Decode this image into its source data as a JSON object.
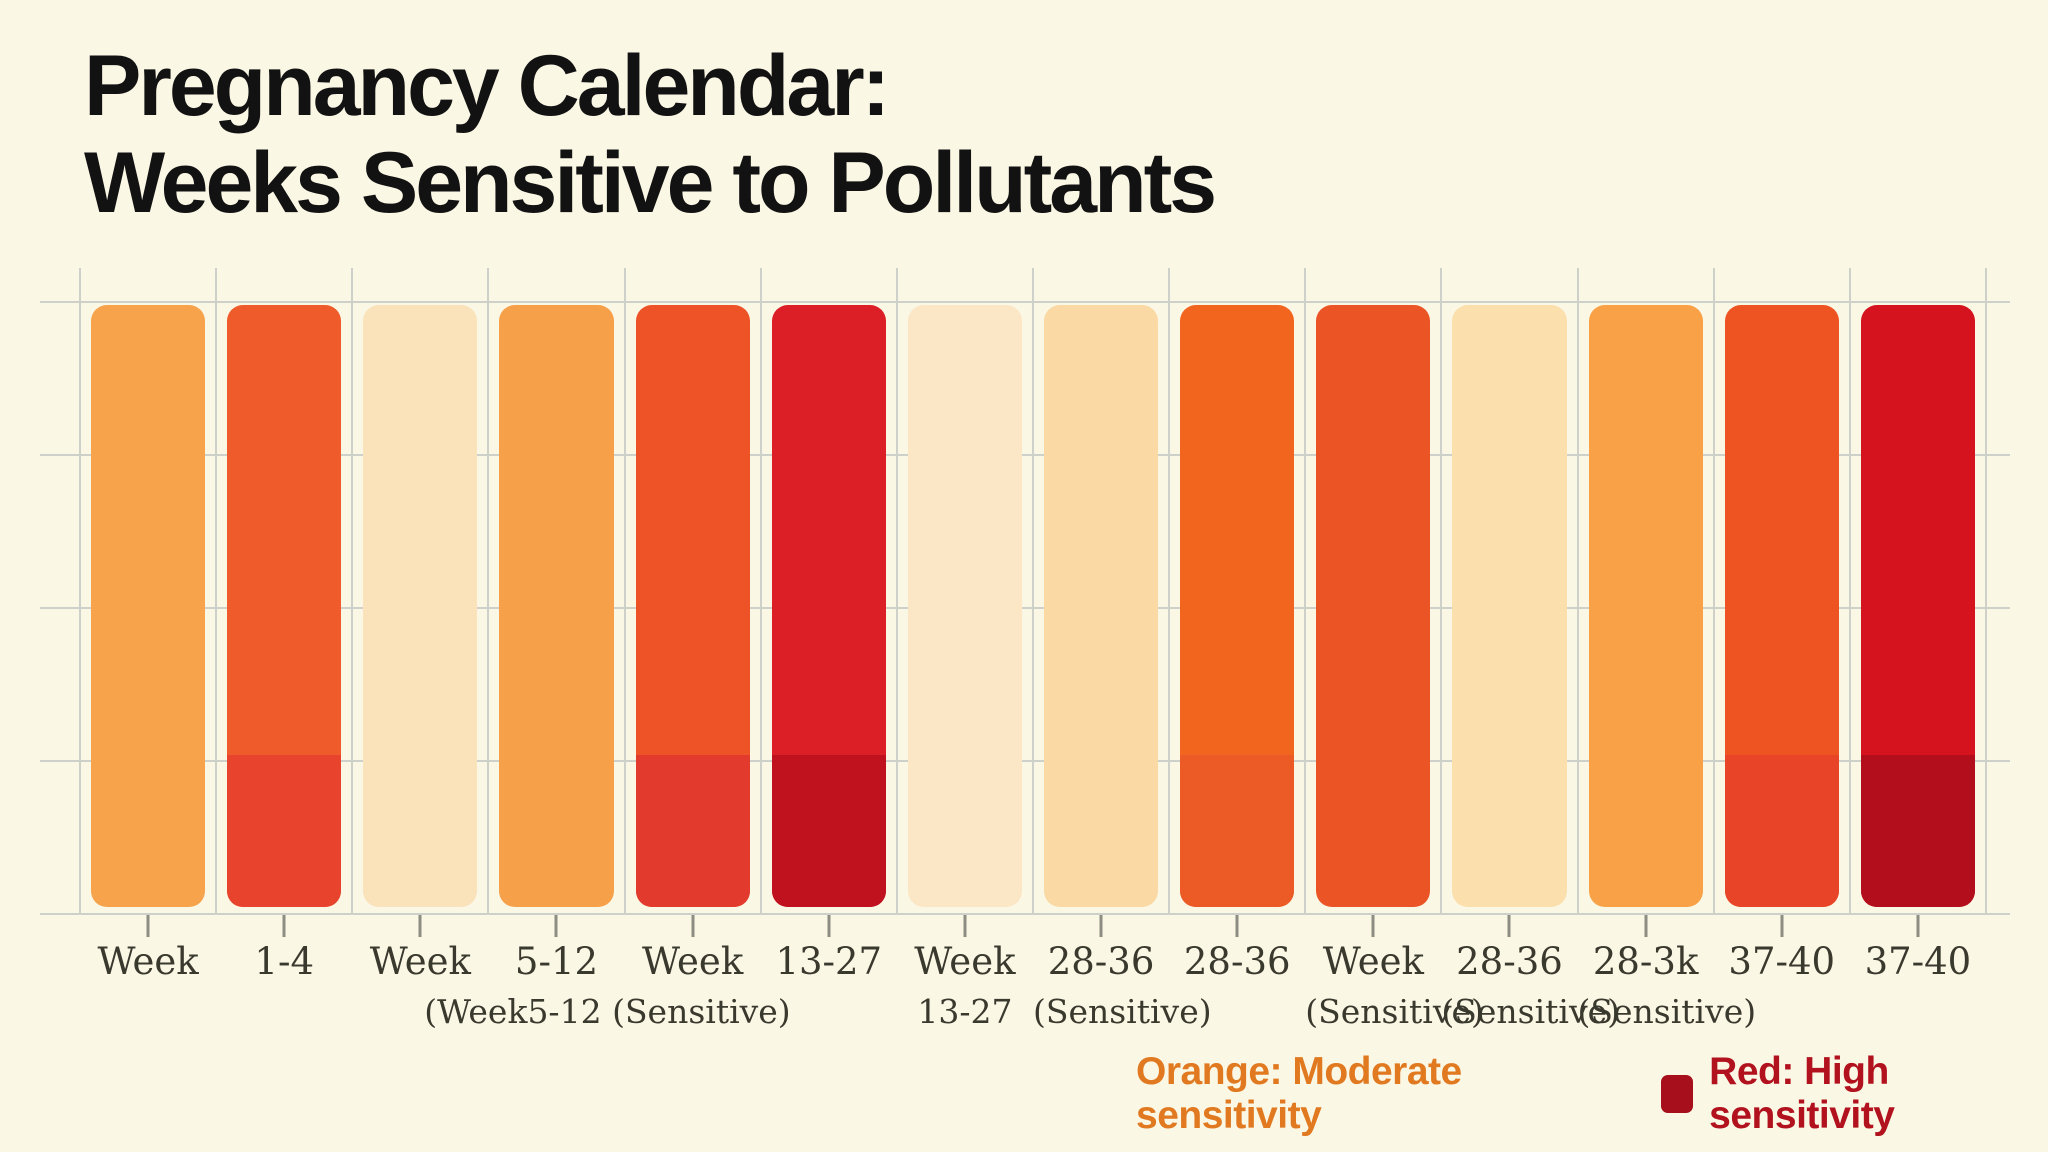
{
  "title": "Pregnancy Calendar:\nWeeks Sensitive to Pollutants",
  "colors": {
    "background": "#FBF7E5",
    "title_text": "#121212",
    "gridline": "#CDD1C9",
    "tick": "#8D8D82",
    "label_text": "#3A392E"
  },
  "chart_data": {
    "type": "bar",
    "title": "Pregnancy Calendar: Weeks Sensitive to Pollutants",
    "xlabel": "",
    "ylabel": "",
    "grid": true,
    "grid_rows": 4,
    "y_axis_labels_visible": false,
    "bars_full_height": true,
    "legend_position": "bottom-right",
    "categories": [
      "Week",
      "1-4",
      "Week",
      "5-12",
      "Week",
      "13-27",
      "Week",
      "28-36",
      "28-36",
      "Week",
      "28-36",
      "28-3k",
      "37-40",
      "37-40"
    ],
    "values": [
      1,
      1,
      1,
      1,
      1,
      1,
      1,
      1,
      1,
      1,
      1,
      1,
      1,
      1
    ],
    "bars": [
      {
        "label": "Week",
        "label2": "",
        "label2_dx": 0,
        "color": "#F7A34C",
        "bottom_color": null,
        "sensitivity": "moderate"
      },
      {
        "label": "1-4",
        "label2": "",
        "label2_dx": 0,
        "color": "#EF5B2B",
        "bottom_color": "#E7432D",
        "sensitivity": "moderate"
      },
      {
        "label": "Week",
        "label2": "(Week5-12 (Sensitive)",
        "label2_dx": 72,
        "color": "#FAE2BA",
        "bottom_color": null,
        "sensitivity": "low"
      },
      {
        "label": "5-12",
        "label2": "",
        "label2_dx": 0,
        "color": "#F7A04A",
        "bottom_color": null,
        "sensitivity": "moderate"
      },
      {
        "label": "Week",
        "label2": "",
        "label2_dx": 0,
        "color": "#EE5328",
        "bottom_color": "#E23A2C",
        "sensitivity": "moderate"
      },
      {
        "label": "13-27",
        "label2": "",
        "label2_dx": 0,
        "color": "#DC1F26",
        "bottom_color": "#C0121E",
        "sensitivity": "high"
      },
      {
        "label": "Week",
        "label2": "13-27",
        "label2_dx": 0,
        "color": "#FBE6C5",
        "bottom_color": null,
        "sensitivity": "low"
      },
      {
        "label": "28-36",
        "label2": "(Sensitive)",
        "label2_dx": 0,
        "color": "#FAD9A4",
        "bottom_color": null,
        "sensitivity": "low"
      },
      {
        "label": "28-36",
        "label2": "",
        "label2_dx": 0,
        "color": "#F2651F",
        "bottom_color": "#EC5A26",
        "sensitivity": "moderate"
      },
      {
        "label": "Week",
        "label2": "(Sensitive)",
        "label2_dx": 0,
        "color": "#EB5526",
        "bottom_color": null,
        "sensitivity": "moderate"
      },
      {
        "label": "28-36",
        "label2": "(Sensitive)",
        "label2_dx": 0,
        "color": "#FBDFAC",
        "bottom_color": null,
        "sensitivity": "low"
      },
      {
        "label": "28-3k",
        "label2": "(Sensitive)",
        "label2_dx": 0,
        "color": "#F9A147",
        "bottom_color": null,
        "sensitivity": "moderate"
      },
      {
        "label": "37-40",
        "label2": "",
        "label2_dx": 0,
        "color": "#EE5322",
        "bottom_color": "#E74428",
        "sensitivity": "moderate"
      },
      {
        "label": "37-40",
        "label2": "",
        "label2_dx": 0,
        "color": "#D5131F",
        "bottom_color": "#B30E1B",
        "sensitivity": "high"
      }
    ],
    "legend": {
      "items": [
        {
          "label": "Orange: Moderate sensitivity",
          "text_color": "#E0791F",
          "swatch_color": null
        },
        {
          "label": "Red: High sensitivity",
          "text_color": "#B1121E",
          "swatch_color": "#A60F1B"
        }
      ]
    }
  }
}
